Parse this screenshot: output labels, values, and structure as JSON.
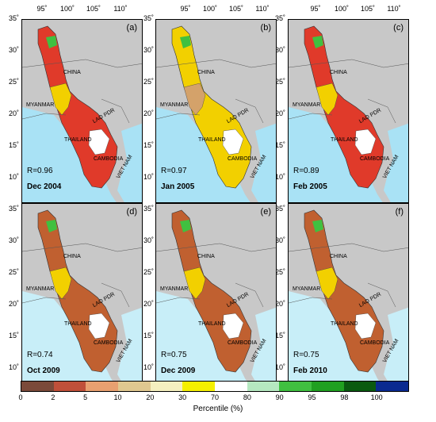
{
  "lon_ticks": [
    "95˚",
    "100˚",
    "105˚",
    "110˚"
  ],
  "lat_ticks": [
    "35˚",
    "30˚",
    "25˚",
    "20˚",
    "15˚",
    "10˚"
  ],
  "countries": {
    "china": "CHINA",
    "myanmar": "MYANMAR",
    "thailand": "THAILAND",
    "laos": "LAO PDR",
    "cambodia": "CAMBODIA",
    "vietnam": "VIET NAM"
  },
  "panels": [
    {
      "tag": "(a)",
      "r": "R=0.96",
      "date": "Dec 2004",
      "mainColor": "#e03a2a",
      "secondColor": "#f2d000",
      "oceanColor": "#a9e2f5"
    },
    {
      "tag": "(b)",
      "r": "R=0.97",
      "date": "Jan 2005",
      "mainColor": "#f2d000",
      "secondColor": "#d4a26a",
      "oceanColor": "#a9e2f5"
    },
    {
      "tag": "(c)",
      "r": "R=0.89",
      "date": "Feb 2005",
      "mainColor": "#e03a2a",
      "secondColor": "#f2d000",
      "oceanColor": "#a9e2f5"
    },
    {
      "tag": "(d)",
      "r": "R=0.74",
      "date": "Oct 2009",
      "mainColor": "#c06030",
      "secondColor": "#f2d000",
      "oceanColor": "#c8eef8"
    },
    {
      "tag": "(e)",
      "r": "R=0.75",
      "date": "Dec 2009",
      "mainColor": "#c06030",
      "secondColor": "#f2d000",
      "oceanColor": "#c8eef8"
    },
    {
      "tag": "(f)",
      "r": "R=0.75",
      "date": "Feb 2010",
      "mainColor": "#c06030",
      "secondColor": "#f2d000",
      "oceanColor": "#c8eef8"
    }
  ],
  "colorbar": {
    "colors": [
      "#7b4a3a",
      "#c0503a",
      "#e8a070",
      "#e0c890",
      "#f5f0c0",
      "#f5f000",
      "#ffffff",
      "#b5e8c0",
      "#40c040",
      "#20a020",
      "#0a5a10",
      "#0a2a90"
    ],
    "ticks": [
      "0",
      "2",
      "5",
      "10",
      "20",
      "30",
      "70",
      "80",
      "90",
      "95",
      "98",
      "100"
    ],
    "title": "Percentile (%)"
  }
}
